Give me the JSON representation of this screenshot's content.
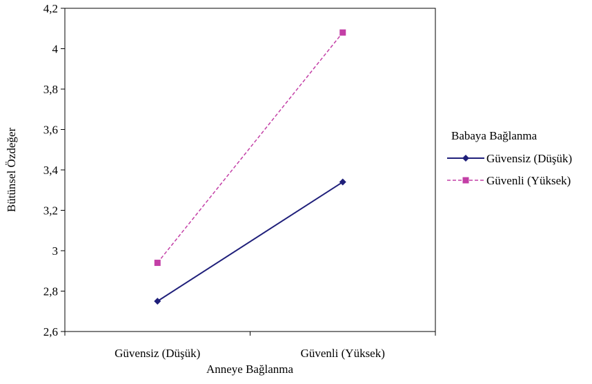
{
  "chart_data": {
    "type": "line",
    "title": "",
    "xlabel": "Anneye Bağlanma",
    "ylabel": "Bütünsel Özdeğer",
    "categories": [
      "Güvensiz (Düşük)",
      "Güvenli (Yüksek)"
    ],
    "ylim": [
      2.6,
      4.2
    ],
    "yticks": [
      "2,6",
      "2,8",
      "3",
      "3,2",
      "3,4",
      "3,6",
      "3,8",
      "4",
      "4,2"
    ],
    "grid": false,
    "legend": {
      "title": "Babaya Bağlanma",
      "placement": "right"
    },
    "series": [
      {
        "name": "Güvensiz (Düşük)",
        "values": [
          2.75,
          3.34
        ],
        "color": "#1f1f7a",
        "marker": "diamond",
        "line": "solid"
      },
      {
        "name": "Güvenli (Yüksek)",
        "values": [
          2.94,
          4.08
        ],
        "color": "#c33fa6",
        "marker": "square",
        "line": "dashed"
      }
    ]
  }
}
